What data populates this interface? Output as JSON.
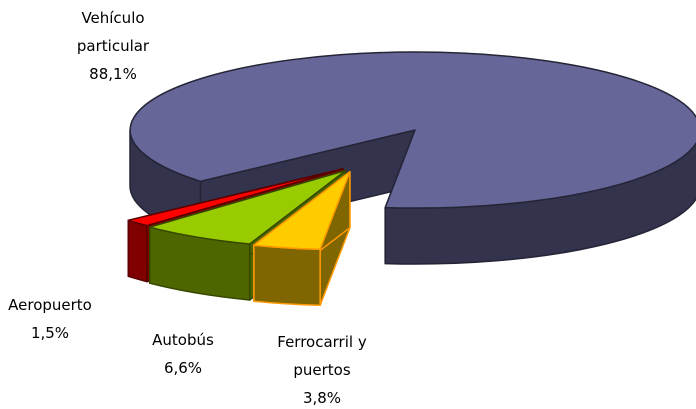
{
  "chart_data": {
    "type": "pie3d",
    "categories": [
      "Vehículo particular",
      "Aeropuerto",
      "Autobús",
      "Ferrocarril y puertos"
    ],
    "values": [
      88.1,
      1.5,
      6.6,
      3.8
    ],
    "value_labels": [
      "88,1%",
      "1,5%",
      "6,6%",
      "3,8%"
    ],
    "colors": [
      "#666699",
      "#ff0000",
      "#99cc00",
      "#ffcc00"
    ],
    "exploded": [
      "Aeropuerto",
      "Autobús",
      "Ferrocarril y puertos"
    ]
  }
}
